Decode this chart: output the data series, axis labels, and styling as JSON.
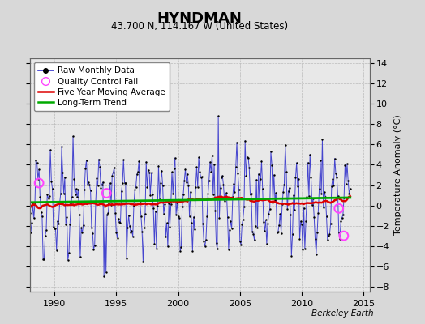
{
  "title": "HYNDMAN",
  "subtitle": "43.700 N, 114.167 W (United States)",
  "ylabel": "Temperature Anomaly (°C)",
  "watermark": "Berkeley Earth",
  "xlim": [
    1988.0,
    2015.5
  ],
  "ylim": [
    -8.5,
    14.5
  ],
  "yticks": [
    -8,
    -6,
    -4,
    -2,
    0,
    2,
    4,
    6,
    8,
    10,
    12,
    14
  ],
  "xticks": [
    1990,
    1995,
    2000,
    2005,
    2010,
    2015
  ],
  "bg_color": "#d8d8d8",
  "plot_bg_color": "#e8e8e8",
  "grid_color": "#bbbbbb",
  "raw_color": "#3333cc",
  "raw_marker_color": "#000000",
  "ma_color": "#dd0000",
  "trend_color": "#00aa00",
  "qc_color": "#ff44ff",
  "seed": 42,
  "n_months": 312,
  "start_year": 1988.0
}
